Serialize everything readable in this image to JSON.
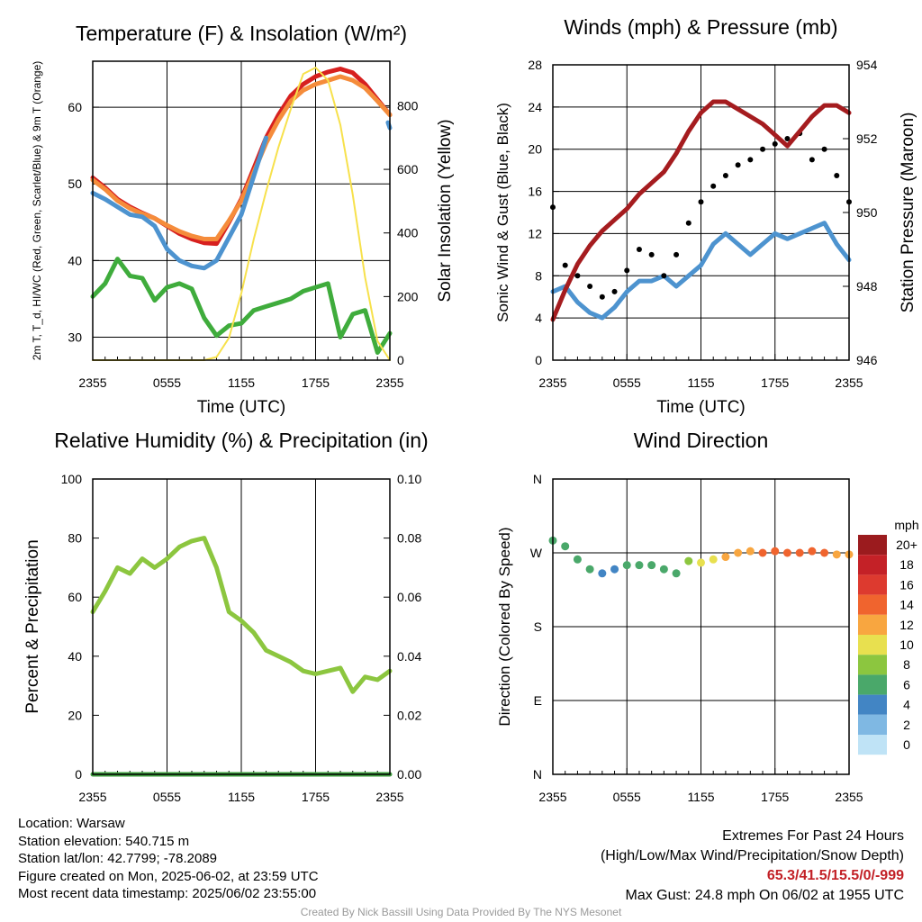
{
  "colors": {
    "red": "#d7201f",
    "orange": "#f58c3b",
    "blue": "#4d93cf",
    "green": "#3fac3c",
    "yellow": "#f7e14c",
    "maroon": "#a51c1f",
    "black": "#000000",
    "wind_blue": "#5ba3dc",
    "rh_green": "#8cc63f",
    "precip_green": "#3f9f3f"
  },
  "x_ticks": [
    "2355",
    "0555",
    "1155",
    "1755",
    "2355"
  ],
  "chart_data": [
    {
      "type": "line",
      "title": "Temperature (F) & Insolation (W/m²)",
      "xlabel": "Time (UTC)",
      "ylabel": "2m T, T_d, HI/WC (Red, Green, Scarlet/Blue) & 9m T (Orange)",
      "y2label": "Solar Insolation (Yellow)",
      "ylim": [
        27,
        66
      ],
      "y2lim": [
        0,
        940
      ],
      "yticks": [
        "30",
        "40",
        "50",
        "60"
      ],
      "y2ticks": [
        "0",
        "200",
        "400",
        "600",
        "800"
      ],
      "x_hours": [
        0,
        1,
        2,
        3,
        4,
        5,
        6,
        7,
        8,
        9,
        10,
        11,
        12,
        13,
        14,
        15,
        16,
        17,
        18,
        19,
        20,
        21,
        22,
        23,
        24
      ],
      "series": [
        {
          "name": "2m T",
          "color": "red",
          "axis": "left",
          "values": [
            50.8,
            49.5,
            48.0,
            47.0,
            46.2,
            45.5,
            44.5,
            43.5,
            42.8,
            42.3,
            42.2,
            45.0,
            48.0,
            52.0,
            56.0,
            59.0,
            61.5,
            63.0,
            64.0,
            64.6,
            65.0,
            64.5,
            63.0,
            61.0,
            59.0
          ]
        },
        {
          "name": "9m T",
          "color": "orange",
          "axis": "left",
          "values": [
            50.5,
            49.3,
            47.8,
            46.8,
            46.1,
            45.5,
            44.6,
            43.8,
            43.2,
            42.8,
            42.8,
            45.2,
            47.8,
            51.5,
            55.3,
            58.3,
            60.8,
            62.2,
            63.0,
            63.5,
            64.0,
            63.5,
            62.5,
            60.8,
            59.0
          ]
        },
        {
          "name": "HI/WC",
          "color": "blue",
          "axis": "left",
          "values": [
            48.8,
            48.0,
            47.0,
            46.0,
            45.7,
            44.5,
            41.5,
            40.0,
            39.3,
            39.0,
            40.0,
            43.0,
            46.0,
            51.0,
            56.0
          ]
        },
        {
          "name": "HI/WC end",
          "color": "blue",
          "axis": "left",
          "x_start": 23.85,
          "values": [
            58.0,
            57.3
          ]
        },
        {
          "name": "2m Td",
          "color": "green",
          "axis": "left",
          "values": [
            35.3,
            37.0,
            40.2,
            38.0,
            37.7,
            34.8,
            36.5,
            37.0,
            36.3,
            32.5,
            30.2,
            31.5,
            31.8,
            33.5,
            34.0,
            34.5,
            35.0,
            36.0,
            36.5,
            37.0,
            30.0,
            33.0,
            33.5,
            28.0,
            30.5
          ]
        },
        {
          "name": "Solar",
          "color": "yellow",
          "axis": "right",
          "values": [
            0,
            0,
            0,
            0,
            0,
            0,
            0,
            0,
            0,
            0,
            10,
            70,
            210,
            380,
            530,
            670,
            790,
            900,
            920,
            880,
            740,
            520,
            260,
            60,
            0
          ]
        }
      ]
    },
    {
      "type": "line",
      "title": "Winds (mph) & Pressure (mb)",
      "xlabel": "Time (UTC)",
      "ylabel": "Sonic Wind & Gust (Blue, Black)",
      "y2label": "Station Pressure (Maroon)",
      "ylim": [
        0,
        28
      ],
      "y2lim": [
        946,
        954
      ],
      "yticks": [
        "0",
        "4",
        "8",
        "12",
        "16",
        "20",
        "24",
        "28"
      ],
      "y2ticks": [
        "946",
        "948",
        "950",
        "952",
        "954"
      ],
      "x_hours": [
        0,
        1,
        2,
        3,
        4,
        5,
        6,
        7,
        8,
        9,
        10,
        11,
        12,
        13,
        14,
        15,
        16,
        17,
        18,
        19,
        20,
        21,
        22,
        23,
        24
      ],
      "series": [
        {
          "name": "Sonic Wind",
          "color": "blue",
          "axis": "left",
          "values": [
            6.5,
            7.0,
            5.5,
            4.5,
            4.0,
            5.0,
            6.5,
            7.5,
            7.5,
            8.0,
            7.0,
            8.0,
            9.0,
            11.0,
            12.0,
            11.0,
            10.0,
            11.0,
            12.0,
            11.5,
            12.0,
            12.5,
            13.0,
            11.0,
            9.5
          ]
        },
        {
          "name": "Gust",
          "color": "black",
          "axis": "left",
          "style": "dots",
          "values": [
            14.5,
            9.0,
            8.0,
            7.0,
            6.0,
            6.5,
            8.5,
            10.5,
            10.0,
            8.0,
            10.0,
            13.0,
            15.0,
            16.5,
            17.5,
            18.5,
            19.0,
            20.0,
            20.5,
            21.0,
            21.5,
            19.0,
            20.0,
            17.5,
            15.0
          ]
        },
        {
          "name": "Pressure",
          "color": "maroon",
          "axis": "right",
          "values": [
            947.1,
            947.9,
            948.6,
            949.1,
            949.5,
            949.8,
            950.1,
            950.5,
            950.8,
            951.1,
            951.6,
            952.2,
            952.7,
            953.0,
            953.0,
            952.8,
            952.6,
            952.4,
            952.1,
            951.8,
            952.2,
            952.6,
            952.9,
            952.9,
            952.7
          ]
        }
      ]
    },
    {
      "type": "line",
      "title": "Relative Humidity (%) & Precipitation (in)",
      "xlabel": "",
      "ylabel": "Percent & Precipitation",
      "ylim": [
        0,
        100
      ],
      "y2lim": [
        0,
        0.1
      ],
      "yticks": [
        "0",
        "20",
        "40",
        "60",
        "80",
        "100"
      ],
      "y2ticks": [
        "0.00",
        "0.02",
        "0.04",
        "0.06",
        "0.08",
        "0.10"
      ],
      "x_hours": [
        0,
        1,
        2,
        3,
        4,
        5,
        6,
        7,
        8,
        9,
        10,
        11,
        12,
        13,
        14,
        15,
        16,
        17,
        18,
        19,
        20,
        21,
        22,
        23,
        24
      ],
      "series": [
        {
          "name": "RH",
          "color": "rh_green",
          "axis": "left",
          "values": [
            55,
            62,
            70,
            68,
            73,
            70,
            73,
            77,
            79,
            80,
            70,
            55,
            52,
            48,
            42,
            40,
            38,
            35,
            34,
            35,
            36,
            28,
            33,
            32,
            35
          ]
        },
        {
          "name": "Precip",
          "color": "precip_green",
          "axis": "right",
          "values": [
            0,
            0,
            0,
            0,
            0,
            0,
            0,
            0,
            0,
            0,
            0,
            0,
            0,
            0,
            0,
            0,
            0,
            0,
            0,
            0,
            0,
            0,
            0,
            0,
            0
          ]
        }
      ]
    },
    {
      "type": "scatter",
      "title": "Wind Direction",
      "xlabel": "",
      "ylabel": "Direction (Colored By Speed)",
      "yticks": [
        "N",
        "E",
        "S",
        "W",
        "N"
      ],
      "ylim": [
        0,
        360
      ],
      "x_hours": [
        0,
        1,
        2,
        3,
        4,
        5,
        6,
        7,
        8,
        9,
        10,
        11,
        12,
        13,
        14,
        15,
        16,
        17,
        18,
        19,
        20,
        21,
        22,
        23,
        24
      ],
      "direction_deg": [
        285,
        278,
        262,
        250,
        245,
        250,
        255,
        255,
        255,
        250,
        245,
        260,
        258,
        262,
        265,
        270,
        272,
        270,
        272,
        270,
        270,
        272,
        270,
        268,
        268
      ],
      "speed_mph": [
        5,
        5,
        5,
        5,
        4,
        4,
        5,
        6,
        6,
        5,
        5,
        8,
        9,
        10,
        11,
        12,
        12,
        13,
        13,
        14,
        14,
        14,
        13,
        12,
        11
      ],
      "colorbar": {
        "unit": "mph",
        "labels": [
          "20+",
          "18",
          "16",
          "14",
          "12",
          "10",
          "8",
          "6",
          "4",
          "2",
          "0"
        ],
        "colors": [
          "#9b1b1e",
          "#c42127",
          "#dd3a2f",
          "#f0642e",
          "#f8a640",
          "#e8e04f",
          "#8cc63f",
          "#4aa86a",
          "#4285c4",
          "#7fb8e3",
          "#bfe3f6"
        ]
      }
    }
  ],
  "footer": {
    "location": "Location: Warsaw",
    "elevation": "Station elevation: 540.715 m",
    "latlon": "Station lat/lon: 42.7799; -78.2089",
    "created": "Figure created on Mon, 2025-06-02, at 23:59 UTC",
    "recent": "Most recent data timestamp: 2025/06/02 23:55:00",
    "extremes_title": "Extremes For Past 24 Hours",
    "extremes_subtitle": "(High/Low/Max Wind/Precipitation/Snow Depth)",
    "extremes_values": "65.3/41.5/15.5/0/-999",
    "max_gust": "Max Gust: 24.8 mph On 06/02 at 1955 UTC",
    "credit": "Created By Nick Bassill Using Data Provided By The NYS Mesonet"
  }
}
